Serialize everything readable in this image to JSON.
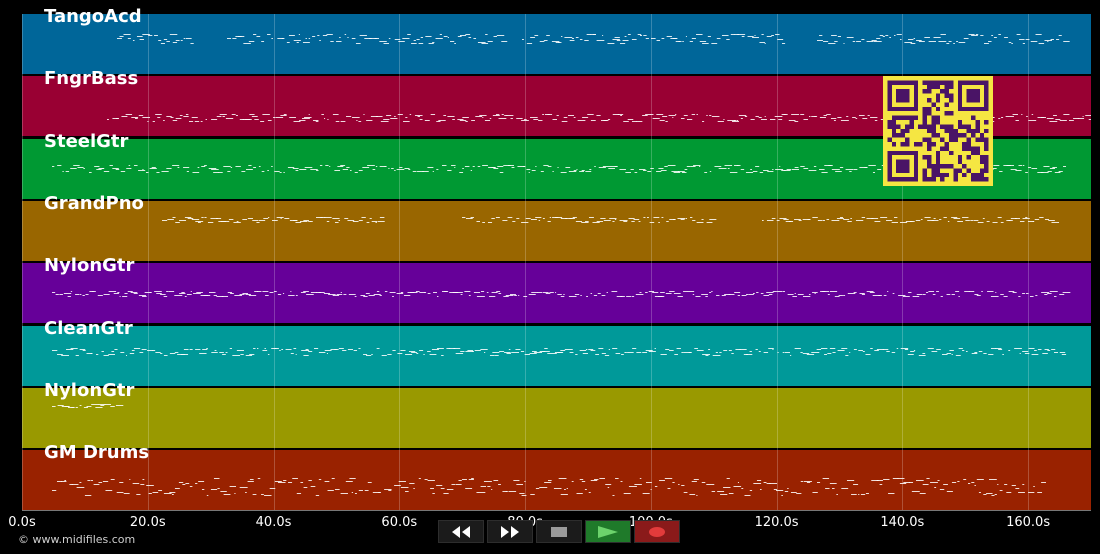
{
  "tracks": [
    {
      "name": "TangoAcd",
      "color": "#006699"
    },
    {
      "name": "FngrBass",
      "color": "#990033"
    },
    {
      "name": "SteelGtr",
      "color": "#009933"
    },
    {
      "name": "GrandPno",
      "color": "#996600"
    },
    {
      "name": "NylonGtr",
      "color": "#660099"
    },
    {
      "name": "CleanGtr",
      "color": "#009999"
    },
    {
      "name": "NylonGtr",
      "color": "#999900"
    },
    {
      "name": "GM Drums",
      "color": "#992200"
    }
  ],
  "timeline": {
    "ticks": [
      "0.0s",
      "20.0s",
      "40.0s",
      "60.0s",
      "80.0s",
      "100.0s",
      "120.0s",
      "140.0s",
      "160.0s"
    ],
    "max_seconds": 170
  },
  "footer": {
    "copyright": "© www.midifiles.com"
  },
  "transport": {
    "buttons": [
      "rewind-icon",
      "fast-forward-icon",
      "stop-icon",
      "play-icon",
      "record-icon"
    ]
  },
  "qr": {
    "fg": "#4a1466",
    "bg": "#f5e642"
  }
}
